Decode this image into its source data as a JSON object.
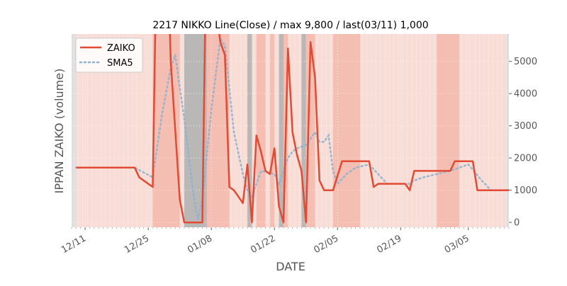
{
  "chart_data": {
    "type": "line",
    "title": "2217 NIKKO Line(Close) / max 9,800 / last(03/11) 1,000",
    "xlabel": "DATE",
    "ylabel": "IPPAN ZAIKO (volume)",
    "ylim": [
      -150,
      5850
    ],
    "xlim": [
      "2023-12-08",
      "2024-03-14"
    ],
    "x_ticks": [
      {
        "date": "2023-12-11",
        "label": "12/11"
      },
      {
        "date": "2023-12-25",
        "label": "12/25"
      },
      {
        "date": "2024-01-08",
        "label": "01/08"
      },
      {
        "date": "2024-01-22",
        "label": "01/22"
      },
      {
        "date": "2024-02-05",
        "label": "02/05"
      },
      {
        "date": "2024-02-19",
        "label": "02/19"
      },
      {
        "date": "2024-03-05",
        "label": "03/05"
      }
    ],
    "y_ticks": [
      0,
      1000,
      2000,
      3000,
      4000,
      5000
    ],
    "y_tick_labels": [
      "0",
      "1000",
      "2000",
      "3000",
      "4000",
      "5000"
    ],
    "y_axis_side": "right",
    "grid": true,
    "legend_position": "top-left",
    "colors": {
      "zaiko": "#e24a33",
      "sma5": "#8eb1cf",
      "band_light": "#f8d8d2",
      "band_medium": "#f3b8ac",
      "band_gray": "#b5b5b5",
      "plot_bg": "#f8ddd6"
    },
    "series": [
      {
        "name": "ZAIKO",
        "style": "solid",
        "points": [
          [
            "2023-12-09",
            1700
          ],
          [
            "2023-12-22",
            1700
          ],
          [
            "2023-12-23",
            1400
          ],
          [
            "2023-12-26",
            1100
          ],
          [
            "2023-12-27",
            9800
          ],
          [
            "2023-12-29",
            9800
          ],
          [
            "2023-12-30",
            5000
          ],
          [
            "2024-01-01",
            700
          ],
          [
            "2024-01-02",
            0
          ],
          [
            "2024-01-06",
            0
          ],
          [
            "2024-01-07",
            9800
          ],
          [
            "2024-01-09",
            6600
          ],
          [
            "2024-01-10",
            5600
          ],
          [
            "2024-01-11",
            5200
          ],
          [
            "2024-01-12",
            1100
          ],
          [
            "2024-01-13",
            1000
          ],
          [
            "2024-01-15",
            600
          ],
          [
            "2024-01-16",
            1800
          ],
          [
            "2024-01-17",
            0
          ],
          [
            "2024-01-18",
            2700
          ],
          [
            "2024-01-19",
            2200
          ],
          [
            "2024-01-20",
            1600
          ],
          [
            "2024-01-21",
            1500
          ],
          [
            "2024-01-22",
            2300
          ],
          [
            "2024-01-23",
            500
          ],
          [
            "2024-01-24",
            0
          ],
          [
            "2024-01-25",
            5400
          ],
          [
            "2024-01-26",
            2800
          ],
          [
            "2024-01-27",
            2100
          ],
          [
            "2024-01-28",
            1600
          ],
          [
            "2024-01-29",
            0
          ],
          [
            "2024-01-30",
            5600
          ],
          [
            "2024-01-31",
            4500
          ],
          [
            "2024-02-01",
            1300
          ],
          [
            "2024-02-02",
            1000
          ],
          [
            "2024-02-04",
            1000
          ],
          [
            "2024-02-06",
            1900
          ],
          [
            "2024-02-12",
            1900
          ],
          [
            "2024-02-13",
            1100
          ],
          [
            "2024-02-14",
            1200
          ],
          [
            "2024-02-20",
            1200
          ],
          [
            "2024-02-21",
            1000
          ],
          [
            "2024-02-22",
            1600
          ],
          [
            "2024-03-01",
            1600
          ],
          [
            "2024-03-02",
            1900
          ],
          [
            "2024-03-06",
            1900
          ],
          [
            "2024-03-07",
            1000
          ],
          [
            "2024-03-18",
            1000
          ]
        ]
      },
      {
        "name": "SMA5",
        "style": "dotted",
        "points": [
          [
            "2023-12-09",
            1700
          ],
          [
            "2023-12-22",
            1700
          ],
          [
            "2023-12-26",
            1400
          ],
          [
            "2023-12-28",
            3300
          ],
          [
            "2023-12-30",
            4800
          ],
          [
            "2023-12-31",
            5200
          ],
          [
            "2024-01-02",
            3200
          ],
          [
            "2024-01-04",
            900
          ],
          [
            "2024-01-05",
            100
          ],
          [
            "2024-01-06",
            700
          ],
          [
            "2024-01-08",
            3500
          ],
          [
            "2024-01-10",
            5700
          ],
          [
            "2024-01-11",
            5500
          ],
          [
            "2024-01-13",
            2800
          ],
          [
            "2024-01-15",
            1500
          ],
          [
            "2024-01-16",
            1000
          ],
          [
            "2024-01-17",
            800
          ],
          [
            "2024-01-19",
            1600
          ],
          [
            "2024-01-22",
            1500
          ],
          [
            "2024-01-23",
            1200
          ],
          [
            "2024-01-25",
            2000
          ],
          [
            "2024-01-26",
            2200
          ],
          [
            "2024-01-27",
            2300
          ],
          [
            "2024-01-29",
            2400
          ],
          [
            "2024-01-31",
            2800
          ],
          [
            "2024-02-01",
            2500
          ],
          [
            "2024-02-02",
            2500
          ],
          [
            "2024-02-03",
            2700
          ],
          [
            "2024-02-04",
            1600
          ],
          [
            "2024-02-05",
            1200
          ],
          [
            "2024-02-07",
            1500
          ],
          [
            "2024-02-09",
            1700
          ],
          [
            "2024-02-12",
            1800
          ],
          [
            "2024-02-14",
            1500
          ],
          [
            "2024-02-16",
            1200
          ],
          [
            "2024-02-21",
            1200
          ],
          [
            "2024-02-22",
            1300
          ],
          [
            "2024-02-24",
            1400
          ],
          [
            "2024-03-01",
            1600
          ],
          [
            "2024-03-05",
            1800
          ],
          [
            "2024-03-08",
            1300
          ],
          [
            "2024-03-10",
            1000
          ],
          [
            "2024-03-18",
            1000
          ]
        ]
      }
    ],
    "shaded_ranges": [
      {
        "start": "2023-12-26",
        "end": "2024-01-01",
        "tone": "medium"
      },
      {
        "start": "2024-01-02",
        "end": "2024-01-07",
        "tone": "gray"
      },
      {
        "start": "2024-01-07",
        "end": "2024-01-12",
        "tone": "medium"
      },
      {
        "start": "2024-01-16",
        "end": "2024-01-17",
        "tone": "gray"
      },
      {
        "start": "2024-01-18",
        "end": "2024-01-20",
        "tone": "medium"
      },
      {
        "start": "2024-01-21",
        "end": "2024-01-22",
        "tone": "medium"
      },
      {
        "start": "2024-01-23",
        "end": "2024-01-24",
        "tone": "gray"
      },
      {
        "start": "2024-01-24",
        "end": "2024-01-25",
        "tone": "medium"
      },
      {
        "start": "2024-01-28",
        "end": "2024-01-29",
        "tone": "gray"
      },
      {
        "start": "2024-01-29",
        "end": "2024-01-31",
        "tone": "medium"
      },
      {
        "start": "2024-02-04",
        "end": "2024-02-10",
        "tone": "medium"
      },
      {
        "start": "2024-02-27",
        "end": "2024-03-03",
        "tone": "medium"
      }
    ]
  }
}
